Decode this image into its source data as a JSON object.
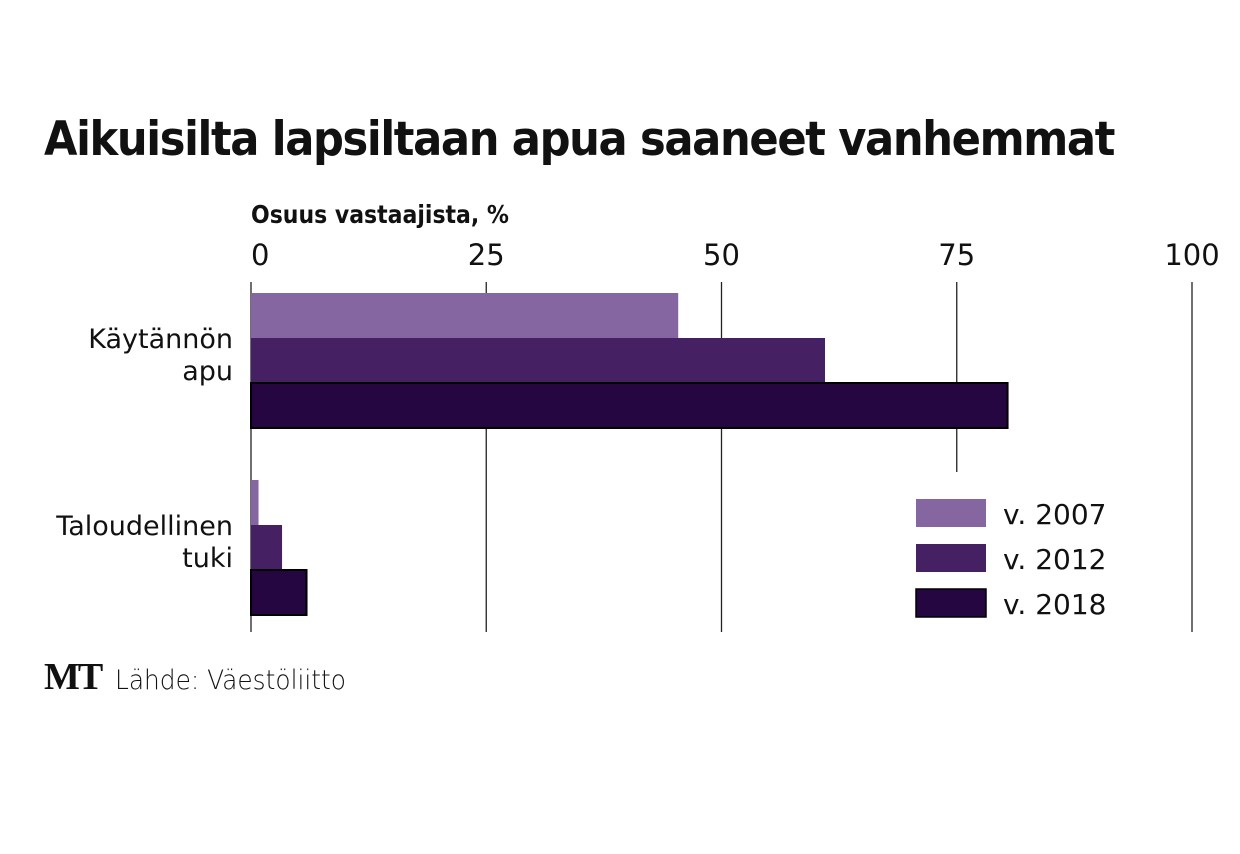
{
  "chart_data": {
    "type": "bar",
    "orientation": "horizontal",
    "title": "Aikuisilta lapsiltaan apua saaneet vanhemmat",
    "xlabel": "Osuus vastaajista, %",
    "ylabel": "",
    "xlim": [
      0,
      100
    ],
    "xticks": [
      "0",
      "25",
      "50",
      "75",
      "100"
    ],
    "xtick_values": [
      0,
      25,
      50,
      75,
      100
    ],
    "grid": true,
    "categories": [
      {
        "label_lines": [
          "Käytännön",
          "apu"
        ]
      },
      {
        "label_lines": [
          "Taloudellinen",
          "tuki"
        ]
      }
    ],
    "series": [
      {
        "name": "v. 2007",
        "color": "#8566a1",
        "values": [
          45.4,
          0.8
        ]
      },
      {
        "name": "v. 2012",
        "color": "#452063",
        "values": [
          61,
          3.3
        ]
      },
      {
        "name": "v. 2018",
        "color": "#260640",
        "values": [
          80.4,
          5.9
        ]
      }
    ],
    "legend_position": "bottom-right"
  },
  "footer": {
    "logo": "MT",
    "source": "Lähde: Väestöliitto"
  }
}
